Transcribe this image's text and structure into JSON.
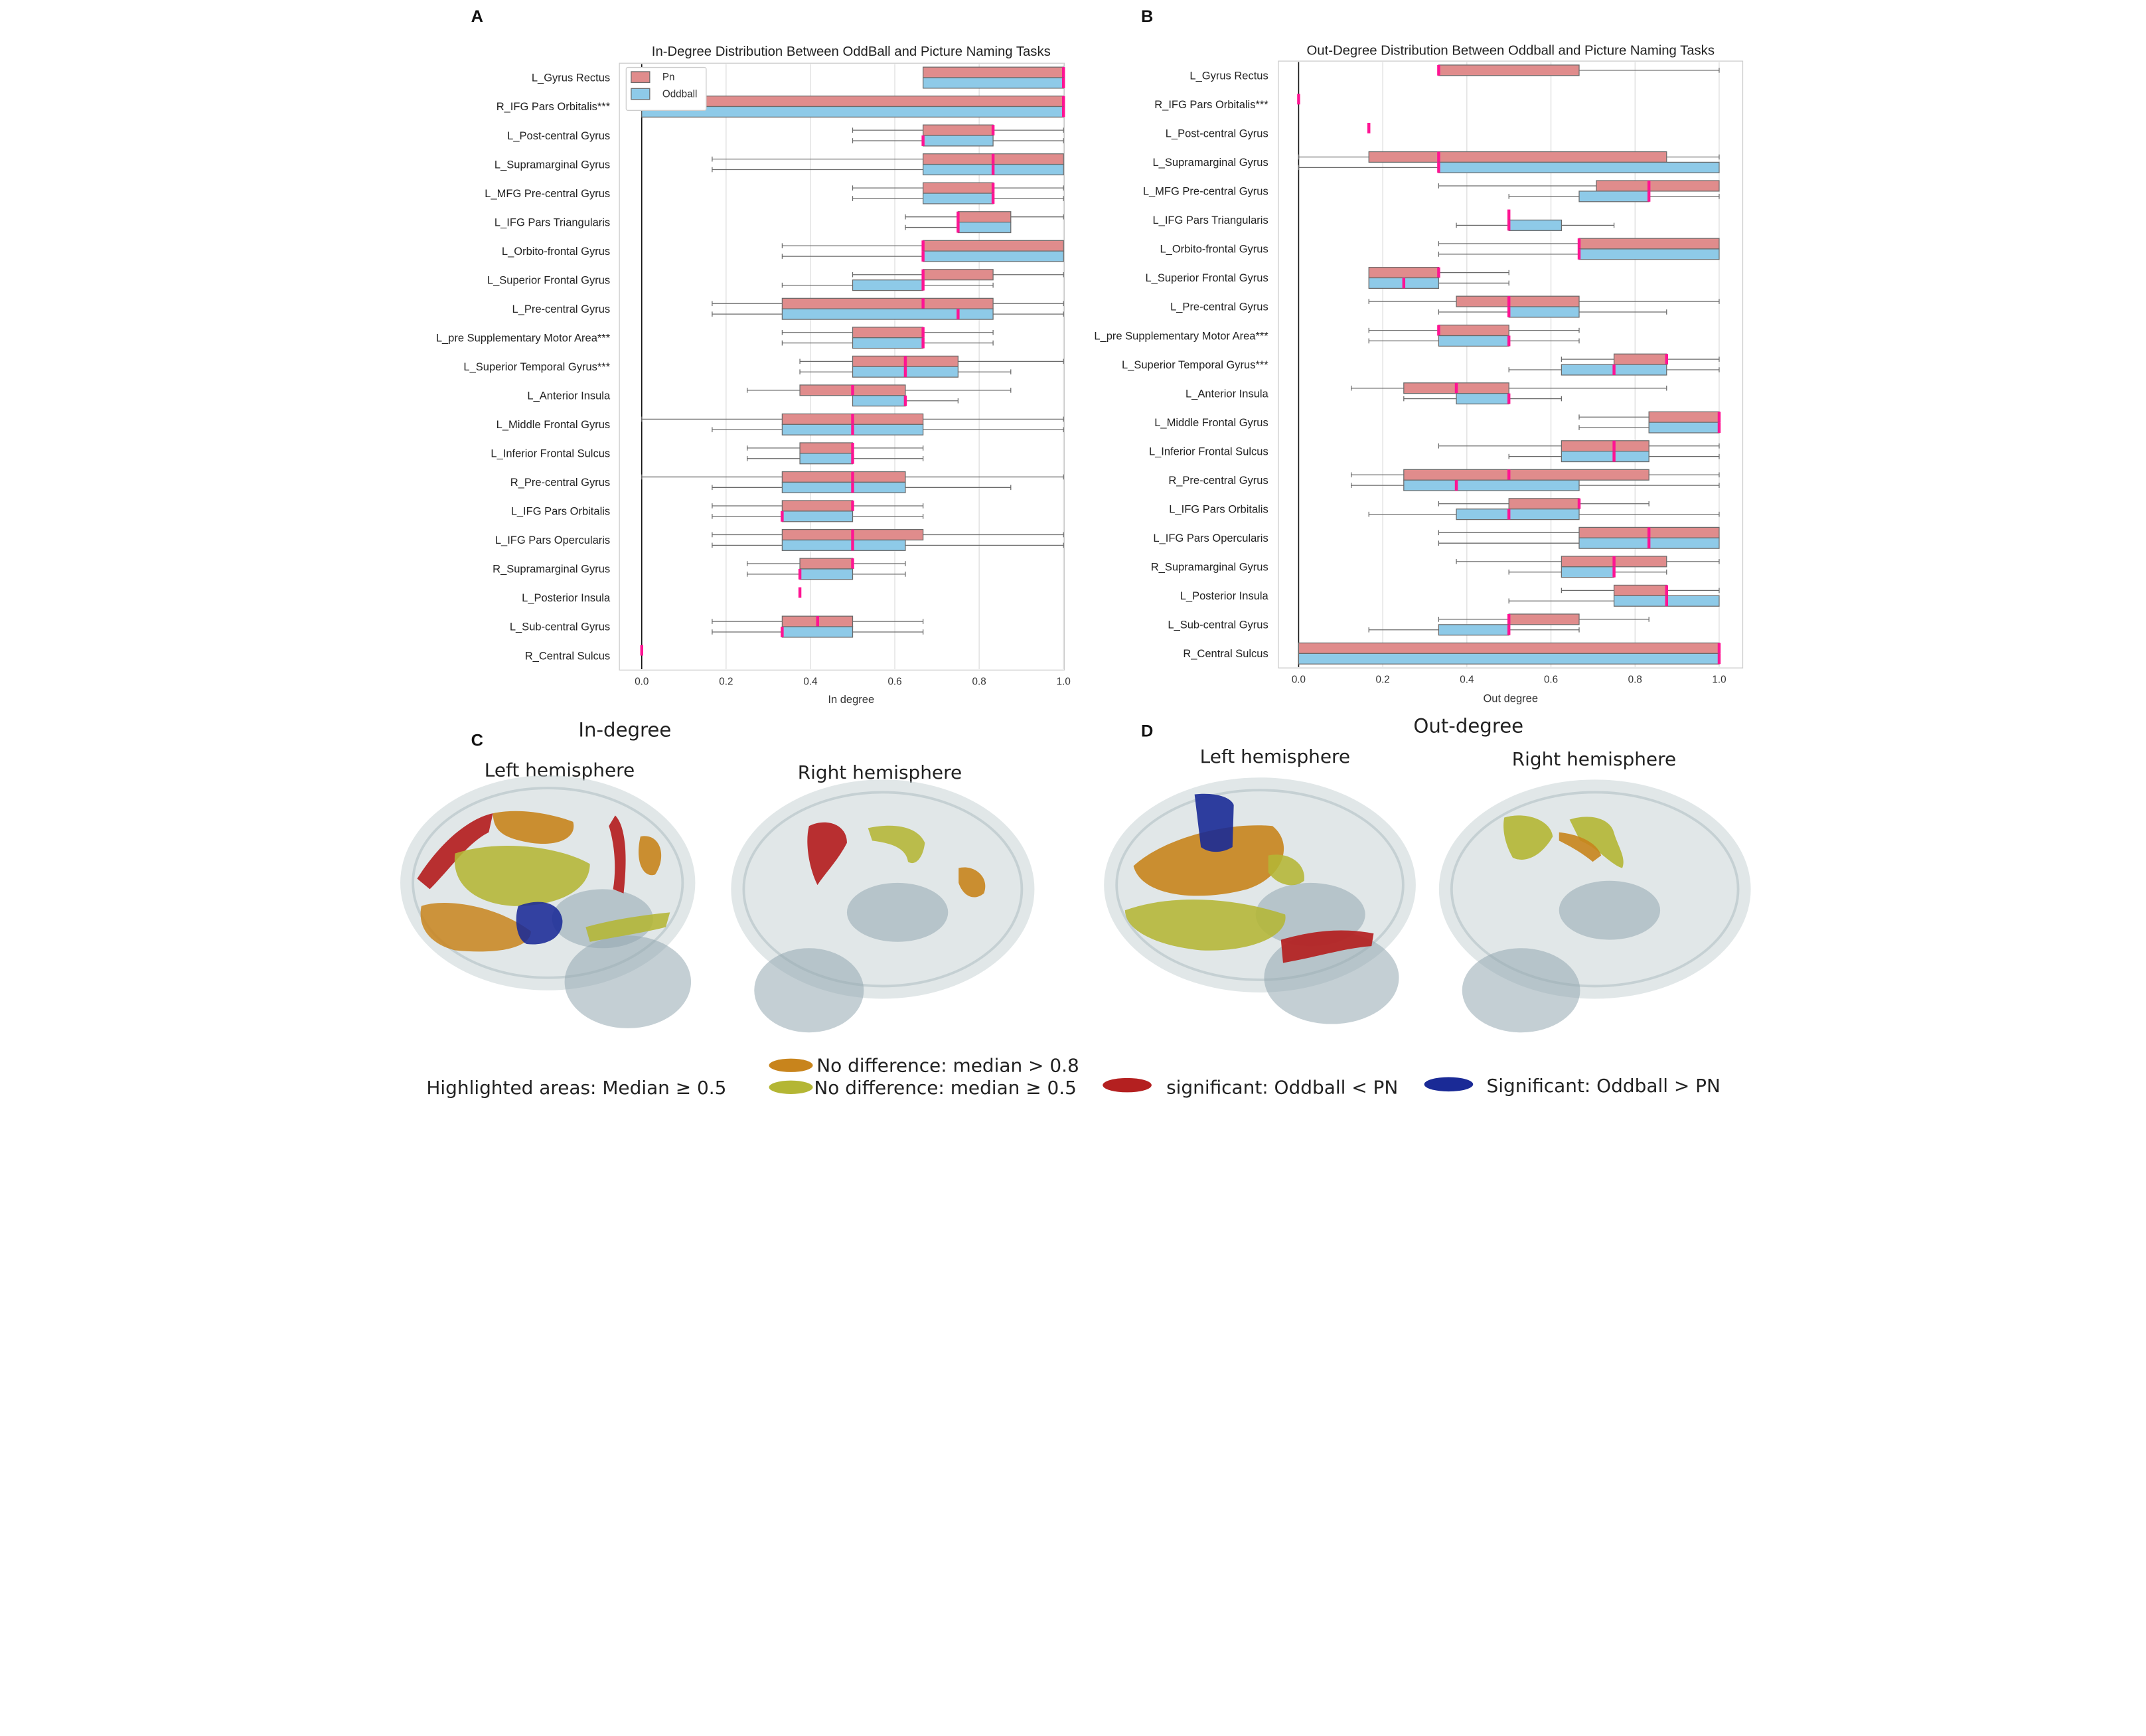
{
  "panels": {
    "A": "A",
    "B": "B",
    "C": "C",
    "D": "D"
  },
  "colors": {
    "pn": "#e08c8c",
    "oddball": "#8ecae8",
    "median": "#ff1493",
    "box_edge": "#6a6a6a",
    "no_diff_high": "#c8841c",
    "no_diff_mid": "#b4b634",
    "sig_less": "#b42020",
    "sig_greater": "#1a2a96",
    "glass": "#c9d3d6",
    "deep": "#93a8b0"
  },
  "chart_data": [
    {
      "type": "boxplot-horizontal",
      "panel": "A",
      "title": "In-Degree Distribution Between OddBall and Picture Naming Tasks",
      "xlabel": "In degree",
      "ylabel": "",
      "xlim": [
        0.0,
        1.0
      ],
      "xticks": [
        "0.0",
        "0.2",
        "0.4",
        "0.6",
        "0.8",
        "1.0"
      ],
      "legend": [
        "Pn",
        "Oddball"
      ],
      "legend_position": "top-left",
      "categories": [
        "L_Gyrus Rectus",
        "R_IFG Pars Orbitalis***",
        "L_Post-central Gyrus",
        "L_Supramarginal Gyrus",
        "L_MFG Pre-central Gyrus",
        "L_IFG Pars Triangularis",
        "L_Orbito-frontal Gyrus",
        "L_Superior Frontal Gyrus",
        "L_Pre-central Gyrus",
        "L_pre Supplementary Motor Area***",
        "L_Superior Temporal Gyrus***",
        "L_Anterior Insula",
        "L_Middle Frontal Gyrus",
        "L_Inferior Frontal Sulcus",
        "R_Pre-central Gyrus",
        "L_IFG Pars Orbitalis",
        "L_IFG Pars Opercularis",
        "R_Supramarginal Gyrus",
        "L_Posterior Insula",
        "L_Sub-central Gyrus",
        "R_Central Sulcus"
      ],
      "series": [
        {
          "name": "Pn",
          "boxes": [
            [
              0.667,
              0.667,
              1.0,
              1.0,
              1.0
            ],
            [
              0.0,
              0.0,
              1.0,
              1.0,
              1.0
            ],
            [
              0.5,
              0.667,
              0.833,
              0.833,
              1.0
            ],
            [
              0.167,
              0.667,
              0.833,
              1.0,
              1.0
            ],
            [
              0.5,
              0.667,
              0.833,
              0.833,
              1.0
            ],
            [
              0.625,
              0.75,
              0.75,
              0.875,
              1.0
            ],
            [
              0.333,
              0.667,
              0.667,
              1.0,
              1.0
            ],
            [
              0.5,
              0.667,
              0.667,
              0.833,
              1.0
            ],
            [
              0.167,
              0.333,
              0.667,
              0.833,
              1.0
            ],
            [
              0.333,
              0.5,
              0.667,
              0.667,
              0.833
            ],
            [
              0.375,
              0.5,
              0.625,
              0.75,
              1.0
            ],
            [
              0.25,
              0.375,
              0.5,
              0.625,
              0.875
            ],
            [
              0.0,
              0.333,
              0.5,
              0.667,
              1.0
            ],
            [
              0.25,
              0.375,
              0.5,
              0.5,
              0.667
            ],
            [
              0.0,
              0.333,
              0.5,
              0.625,
              1.0
            ],
            [
              0.167,
              0.333,
              0.5,
              0.5,
              0.667
            ],
            [
              0.167,
              0.333,
              0.5,
              0.667,
              1.0
            ],
            [
              0.25,
              0.375,
              0.5,
              0.5,
              0.625
            ],
            [
              0.375,
              0.375,
              0.375,
              0.375,
              0.375
            ],
            [
              0.167,
              0.333,
              0.417,
              0.5,
              0.667
            ],
            [
              0.0,
              0.0,
              0.0,
              0.0,
              0.0
            ]
          ]
        },
        {
          "name": "Oddball",
          "boxes": [
            [
              0.667,
              0.667,
              1.0,
              1.0,
              1.0
            ],
            [
              0.0,
              0.0,
              1.0,
              1.0,
              1.0
            ],
            [
              0.5,
              0.667,
              0.667,
              0.833,
              1.0
            ],
            [
              0.167,
              0.667,
              0.833,
              1.0,
              1.0
            ],
            [
              0.5,
              0.667,
              0.833,
              0.833,
              1.0
            ],
            [
              0.625,
              0.75,
              0.75,
              0.875,
              0.875
            ],
            [
              0.333,
              0.667,
              0.667,
              1.0,
              1.0
            ],
            [
              0.333,
              0.5,
              0.667,
              0.667,
              0.833
            ],
            [
              0.167,
              0.333,
              0.75,
              0.833,
              1.0
            ],
            [
              0.333,
              0.5,
              0.667,
              0.667,
              0.833
            ],
            [
              0.375,
              0.5,
              0.625,
              0.75,
              0.875
            ],
            [
              0.5,
              0.5,
              0.625,
              0.625,
              0.75
            ],
            [
              0.167,
              0.333,
              0.5,
              0.667,
              1.0
            ],
            [
              0.25,
              0.375,
              0.5,
              0.5,
              0.667
            ],
            [
              0.167,
              0.333,
              0.5,
              0.625,
              0.875
            ],
            [
              0.167,
              0.333,
              0.333,
              0.5,
              0.667
            ],
            [
              0.167,
              0.333,
              0.5,
              0.625,
              1.0
            ],
            [
              0.25,
              0.375,
              0.375,
              0.5,
              0.625
            ],
            null,
            [
              0.167,
              0.333,
              0.333,
              0.5,
              0.667
            ],
            null
          ]
        }
      ]
    },
    {
      "type": "boxplot-horizontal",
      "panel": "B",
      "title": "Out-Degree Distribution Between Oddball and Picture Naming Tasks",
      "xlabel": "Out degree",
      "ylabel": "",
      "xlim": [
        0.0,
        1.0
      ],
      "xticks": [
        "0.0",
        "0.2",
        "0.4",
        "0.6",
        "0.8",
        "1.0"
      ],
      "legend": [],
      "categories": [
        "L_Gyrus Rectus",
        "R_IFG Pars Orbitalis***",
        "L_Post-central Gyrus",
        "L_Supramarginal Gyrus",
        "L_MFG Pre-central Gyrus",
        "L_IFG Pars Triangularis",
        "L_Orbito-frontal Gyrus",
        "L_Superior Frontal Gyrus",
        "L_Pre-central Gyrus",
        "L_pre Supplementary Motor Area***",
        "L_Superior Temporal Gyrus***",
        "L_Anterior Insula",
        "L_Middle Frontal Gyrus",
        "L_Inferior Frontal Sulcus",
        "R_Pre-central Gyrus",
        "L_IFG Pars Orbitalis",
        "L_IFG Pars Opercularis",
        "R_Supramarginal Gyrus",
        "L_Posterior Insula",
        "L_Sub-central Gyrus",
        "R_Central Sulcus"
      ],
      "series": [
        {
          "name": "Pn",
          "boxes": [
            [
              0.333,
              0.333,
              0.333,
              0.667,
              1.0
            ],
            [
              0.0,
              0.0,
              0.0,
              0.0,
              0.0
            ],
            [
              0.167,
              0.167,
              0.167,
              0.167,
              0.167
            ],
            [
              0.0,
              0.167,
              0.333,
              0.875,
              1.0
            ],
            [
              0.333,
              0.708,
              0.833,
              1.0,
              1.0
            ],
            [
              0.5,
              0.5,
              0.5,
              0.5,
              0.5
            ],
            [
              0.333,
              0.667,
              0.667,
              1.0,
              1.0
            ],
            [
              0.167,
              0.167,
              0.333,
              0.333,
              0.5
            ],
            [
              0.167,
              0.375,
              0.5,
              0.667,
              1.0
            ],
            [
              0.167,
              0.333,
              0.333,
              0.5,
              0.667
            ],
            [
              0.625,
              0.75,
              0.875,
              0.875,
              1.0
            ],
            [
              0.125,
              0.25,
              0.375,
              0.5,
              0.875
            ],
            [
              0.667,
              0.833,
              1.0,
              1.0,
              1.0
            ],
            [
              0.333,
              0.625,
              0.75,
              0.833,
              1.0
            ],
            [
              0.125,
              0.25,
              0.5,
              0.833,
              1.0
            ],
            [
              0.333,
              0.5,
              0.667,
              0.667,
              0.833
            ],
            [
              0.333,
              0.667,
              0.833,
              1.0,
              1.0
            ],
            [
              0.375,
              0.625,
              0.75,
              0.875,
              1.0
            ],
            [
              0.625,
              0.75,
              0.875,
              0.875,
              1.0
            ],
            [
              0.333,
              0.5,
              0.5,
              0.667,
              0.833
            ],
            [
              0.0,
              0.0,
              1.0,
              1.0,
              1.0
            ]
          ]
        },
        {
          "name": "Oddball",
          "boxes": [
            null,
            null,
            null,
            [
              0.0,
              0.333,
              0.333,
              1.0,
              1.0
            ],
            [
              0.5,
              0.667,
              0.833,
              0.833,
              1.0
            ],
            [
              0.375,
              0.5,
              0.5,
              0.625,
              0.75
            ],
            [
              0.333,
              0.667,
              0.667,
              1.0,
              1.0
            ],
            [
              0.167,
              0.167,
              0.25,
              0.333,
              0.5
            ],
            [
              0.333,
              0.5,
              0.5,
              0.667,
              0.875
            ],
            [
              0.167,
              0.333,
              0.5,
              0.5,
              0.667
            ],
            [
              0.5,
              0.625,
              0.75,
              0.875,
              1.0
            ],
            [
              0.25,
              0.375,
              0.5,
              0.5,
              0.625
            ],
            [
              0.667,
              0.833,
              1.0,
              1.0,
              1.0
            ],
            [
              0.5,
              0.625,
              0.75,
              0.833,
              1.0
            ],
            [
              0.125,
              0.25,
              0.375,
              0.667,
              1.0
            ],
            [
              0.167,
              0.375,
              0.5,
              0.667,
              1.0
            ],
            [
              0.333,
              0.667,
              0.833,
              1.0,
              1.0
            ],
            [
              0.5,
              0.625,
              0.75,
              0.75,
              0.875
            ],
            [
              0.5,
              0.75,
              0.875,
              1.0,
              1.0
            ],
            [
              0.167,
              0.333,
              0.5,
              0.5,
              0.667
            ],
            [
              0.0,
              0.0,
              1.0,
              1.0,
              1.0
            ]
          ]
        }
      ]
    }
  ],
  "brain": {
    "c_title": "In-degree",
    "d_title": "Out-degree",
    "left_hemisphere": "Left hemisphere",
    "right_hemisphere": "Right hemisphere"
  },
  "key": {
    "caption": "Highlighted areas: Median ≥ 0.5",
    "no_diff_high": "No difference: median > 0.8",
    "no_diff_mid": "No difference: median ≥ 0.5",
    "sig_less": "significant: Oddball  < PN",
    "sig_greater": "Significant: Oddball > PN"
  }
}
